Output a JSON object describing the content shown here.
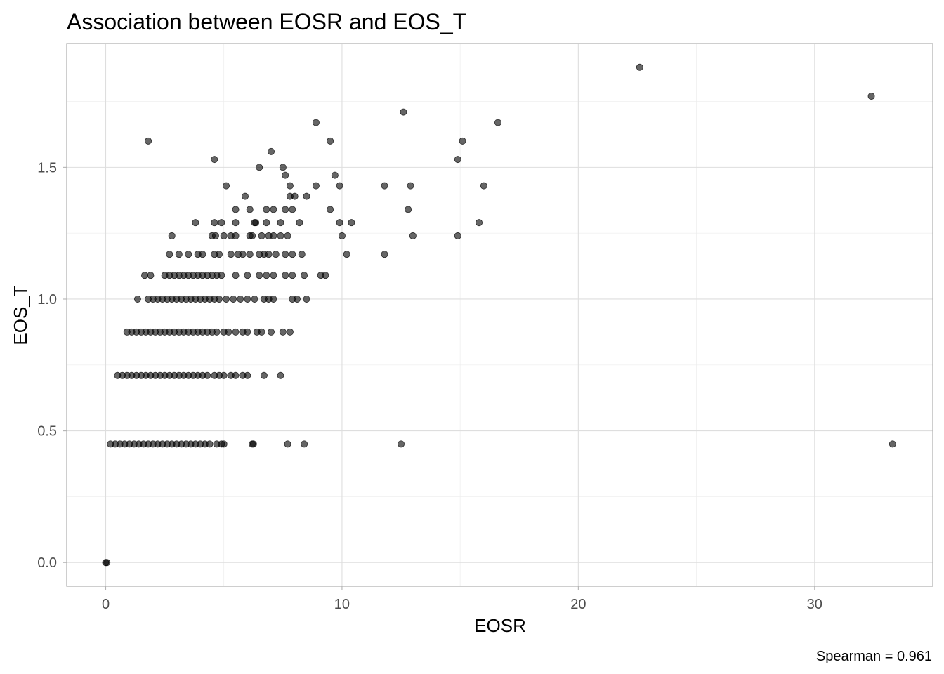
{
  "chart_data": {
    "type": "scatter",
    "title": "Association between EOSR and EOS_T",
    "xlabel": "EOSR",
    "ylabel": "EOS_T",
    "caption": "Spearman = 0.961",
    "xlim": [
      -1.65,
      35.0
    ],
    "ylim": [
      -0.09,
      1.97
    ],
    "x_ticks": [
      0,
      10,
      20,
      30
    ],
    "x_tick_labels": [
      "0",
      "10",
      "20",
      "30"
    ],
    "y_ticks": [
      0.0,
      0.5,
      1.0,
      1.5
    ],
    "y_tick_labels": [
      "0.0",
      "0.5",
      "1.0",
      "1.5"
    ],
    "grid": true,
    "point_color": "#000000",
    "point_alpha": 0.6,
    "points": [
      [
        0.0,
        0.0
      ],
      [
        0.05,
        0.0
      ],
      [
        0.2,
        0.45
      ],
      [
        0.4,
        0.45
      ],
      [
        0.6,
        0.45
      ],
      [
        0.8,
        0.45
      ],
      [
        1.0,
        0.45
      ],
      [
        1.2,
        0.45
      ],
      [
        1.4,
        0.45
      ],
      [
        1.6,
        0.45
      ],
      [
        1.8,
        0.45
      ],
      [
        2.0,
        0.45
      ],
      [
        2.2,
        0.45
      ],
      [
        2.4,
        0.45
      ],
      [
        2.6,
        0.45
      ],
      [
        2.8,
        0.45
      ],
      [
        3.0,
        0.45
      ],
      [
        3.2,
        0.45
      ],
      [
        3.4,
        0.45
      ],
      [
        3.6,
        0.45
      ],
      [
        3.8,
        0.45
      ],
      [
        4.0,
        0.45
      ],
      [
        4.2,
        0.45
      ],
      [
        4.4,
        0.45
      ],
      [
        4.7,
        0.45
      ],
      [
        4.9,
        0.45
      ],
      [
        5.0,
        0.45
      ],
      [
        6.2,
        0.45
      ],
      [
        6.25,
        0.45
      ],
      [
        7.7,
        0.45
      ],
      [
        8.4,
        0.45
      ],
      [
        12.5,
        0.45
      ],
      [
        33.3,
        0.45
      ],
      [
        0.5,
        0.71
      ],
      [
        0.7,
        0.71
      ],
      [
        0.9,
        0.71
      ],
      [
        1.1,
        0.71
      ],
      [
        1.3,
        0.71
      ],
      [
        1.5,
        0.71
      ],
      [
        1.7,
        0.71
      ],
      [
        1.9,
        0.71
      ],
      [
        2.1,
        0.71
      ],
      [
        2.3,
        0.71
      ],
      [
        2.5,
        0.71
      ],
      [
        2.7,
        0.71
      ],
      [
        2.9,
        0.71
      ],
      [
        3.1,
        0.71
      ],
      [
        3.3,
        0.71
      ],
      [
        3.5,
        0.71
      ],
      [
        3.7,
        0.71
      ],
      [
        3.9,
        0.71
      ],
      [
        4.1,
        0.71
      ],
      [
        4.3,
        0.71
      ],
      [
        4.6,
        0.71
      ],
      [
        4.8,
        0.71
      ],
      [
        5.0,
        0.71
      ],
      [
        5.3,
        0.71
      ],
      [
        5.5,
        0.71
      ],
      [
        5.8,
        0.71
      ],
      [
        6.0,
        0.71
      ],
      [
        6.7,
        0.71
      ],
      [
        7.4,
        0.71
      ],
      [
        0.9,
        0.875
      ],
      [
        1.1,
        0.875
      ],
      [
        1.3,
        0.875
      ],
      [
        1.5,
        0.875
      ],
      [
        1.7,
        0.875
      ],
      [
        1.9,
        0.875
      ],
      [
        2.1,
        0.875
      ],
      [
        2.3,
        0.875
      ],
      [
        2.5,
        0.875
      ],
      [
        2.7,
        0.875
      ],
      [
        2.9,
        0.875
      ],
      [
        3.1,
        0.875
      ],
      [
        3.3,
        0.875
      ],
      [
        3.5,
        0.875
      ],
      [
        3.7,
        0.875
      ],
      [
        3.9,
        0.875
      ],
      [
        4.1,
        0.875
      ],
      [
        4.3,
        0.875
      ],
      [
        4.5,
        0.875
      ],
      [
        4.7,
        0.875
      ],
      [
        5.0,
        0.875
      ],
      [
        5.2,
        0.875
      ],
      [
        5.5,
        0.875
      ],
      [
        5.8,
        0.875
      ],
      [
        6.0,
        0.875
      ],
      [
        6.4,
        0.875
      ],
      [
        6.6,
        0.875
      ],
      [
        7.0,
        0.875
      ],
      [
        7.5,
        0.875
      ],
      [
        7.8,
        0.875
      ],
      [
        1.35,
        1.0
      ],
      [
        1.8,
        1.0
      ],
      [
        2.0,
        1.0
      ],
      [
        2.2,
        1.0
      ],
      [
        2.4,
        1.0
      ],
      [
        2.6,
        1.0
      ],
      [
        2.8,
        1.0
      ],
      [
        3.0,
        1.0
      ],
      [
        3.2,
        1.0
      ],
      [
        3.4,
        1.0
      ],
      [
        3.6,
        1.0
      ],
      [
        3.8,
        1.0
      ],
      [
        4.0,
        1.0
      ],
      [
        4.2,
        1.0
      ],
      [
        4.4,
        1.0
      ],
      [
        4.6,
        1.0
      ],
      [
        4.8,
        1.0
      ],
      [
        5.1,
        1.0
      ],
      [
        5.4,
        1.0
      ],
      [
        5.7,
        1.0
      ],
      [
        6.0,
        1.0
      ],
      [
        6.3,
        1.0
      ],
      [
        6.7,
        1.0
      ],
      [
        6.9,
        1.0
      ],
      [
        7.1,
        1.0
      ],
      [
        7.9,
        1.0
      ],
      [
        8.1,
        1.0
      ],
      [
        8.5,
        1.0
      ],
      [
        1.65,
        1.09
      ],
      [
        1.9,
        1.09
      ],
      [
        2.5,
        1.09
      ],
      [
        2.7,
        1.09
      ],
      [
        2.9,
        1.09
      ],
      [
        3.1,
        1.09
      ],
      [
        3.3,
        1.09
      ],
      [
        3.5,
        1.09
      ],
      [
        3.7,
        1.09
      ],
      [
        3.9,
        1.09
      ],
      [
        4.1,
        1.09
      ],
      [
        4.3,
        1.09
      ],
      [
        4.5,
        1.09
      ],
      [
        4.7,
        1.09
      ],
      [
        4.9,
        1.09
      ],
      [
        5.5,
        1.09
      ],
      [
        6.0,
        1.09
      ],
      [
        6.5,
        1.09
      ],
      [
        6.8,
        1.09
      ],
      [
        7.1,
        1.09
      ],
      [
        7.6,
        1.09
      ],
      [
        7.9,
        1.09
      ],
      [
        8.4,
        1.09
      ],
      [
        9.1,
        1.09
      ],
      [
        9.3,
        1.09
      ],
      [
        2.7,
        1.17
      ],
      [
        3.1,
        1.17
      ],
      [
        3.5,
        1.17
      ],
      [
        3.9,
        1.17
      ],
      [
        4.1,
        1.17
      ],
      [
        4.6,
        1.17
      ],
      [
        4.8,
        1.17
      ],
      [
        5.3,
        1.17
      ],
      [
        5.6,
        1.17
      ],
      [
        5.8,
        1.17
      ],
      [
        6.1,
        1.17
      ],
      [
        6.5,
        1.17
      ],
      [
        6.7,
        1.17
      ],
      [
        6.9,
        1.17
      ],
      [
        7.2,
        1.17
      ],
      [
        7.6,
        1.17
      ],
      [
        7.9,
        1.17
      ],
      [
        8.3,
        1.17
      ],
      [
        10.2,
        1.17
      ],
      [
        11.8,
        1.17
      ],
      [
        2.8,
        1.24
      ],
      [
        4.5,
        1.24
      ],
      [
        4.65,
        1.24
      ],
      [
        5.0,
        1.24
      ],
      [
        5.3,
        1.24
      ],
      [
        5.5,
        1.24
      ],
      [
        6.1,
        1.24
      ],
      [
        6.2,
        1.24
      ],
      [
        6.6,
        1.24
      ],
      [
        6.9,
        1.24
      ],
      [
        7.1,
        1.24
      ],
      [
        7.4,
        1.24
      ],
      [
        7.7,
        1.24
      ],
      [
        10.0,
        1.24
      ],
      [
        13.0,
        1.24
      ],
      [
        14.9,
        1.24
      ],
      [
        3.8,
        1.29
      ],
      [
        4.6,
        1.29
      ],
      [
        4.9,
        1.29
      ],
      [
        5.5,
        1.29
      ],
      [
        6.3,
        1.29
      ],
      [
        6.35,
        1.29
      ],
      [
        6.8,
        1.29
      ],
      [
        7.4,
        1.29
      ],
      [
        8.2,
        1.29
      ],
      [
        9.9,
        1.29
      ],
      [
        10.4,
        1.29
      ],
      [
        15.8,
        1.29
      ],
      [
        5.5,
        1.34
      ],
      [
        6.1,
        1.34
      ],
      [
        6.8,
        1.34
      ],
      [
        7.1,
        1.34
      ],
      [
        7.6,
        1.34
      ],
      [
        7.9,
        1.34
      ],
      [
        9.5,
        1.34
      ],
      [
        12.8,
        1.34
      ],
      [
        5.9,
        1.39
      ],
      [
        7.8,
        1.39
      ],
      [
        8.0,
        1.39
      ],
      [
        8.5,
        1.39
      ],
      [
        5.1,
        1.43
      ],
      [
        7.8,
        1.43
      ],
      [
        8.9,
        1.43
      ],
      [
        9.9,
        1.43
      ],
      [
        11.8,
        1.43
      ],
      [
        12.9,
        1.43
      ],
      [
        16.0,
        1.43
      ],
      [
        7.6,
        1.47
      ],
      [
        9.7,
        1.47
      ],
      [
        6.5,
        1.5
      ],
      [
        7.5,
        1.5
      ],
      [
        4.6,
        1.53
      ],
      [
        14.9,
        1.53
      ],
      [
        7.0,
        1.56
      ],
      [
        1.8,
        1.6
      ],
      [
        9.5,
        1.6
      ],
      [
        15.1,
        1.6
      ],
      [
        8.9,
        1.67
      ],
      [
        16.6,
        1.67
      ],
      [
        12.6,
        1.71
      ],
      [
        32.4,
        1.77
      ],
      [
        22.6,
        1.88
      ]
    ]
  }
}
